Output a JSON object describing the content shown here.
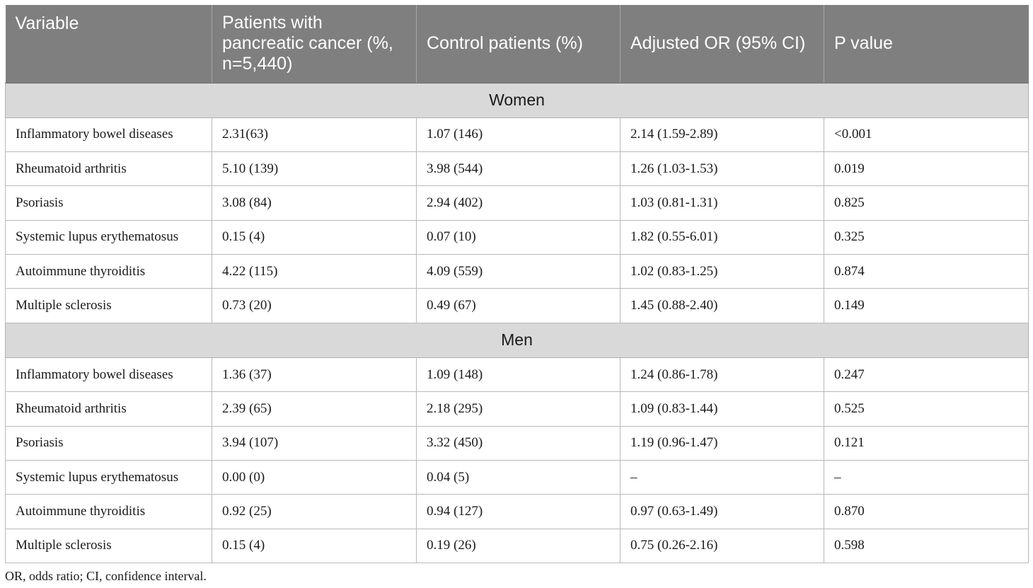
{
  "table": {
    "headers": [
      "Variable",
      "Patients with pancreatic cancer (%, n=5,440)",
      "Control patients (%)",
      "Adjusted OR (95% CI)",
      "P value"
    ],
    "sections": [
      {
        "title": "Women",
        "rows": [
          [
            "Inflammatory bowel diseases",
            "2.31(63)",
            "1.07 (146)",
            "2.14 (1.59-2.89)",
            "<0.001"
          ],
          [
            "Rheumatoid arthritis",
            "5.10 (139)",
            "3.98 (544)",
            "1.26 (1.03-1.53)",
            "0.019"
          ],
          [
            "Psoriasis",
            "3.08 (84)",
            "2.94 (402)",
            "1.03 (0.81-1.31)",
            "0.825"
          ],
          [
            "Systemic lupus erythematosus",
            "0.15 (4)",
            "0.07 (10)",
            "1.82 (0.55-6.01)",
            "0.325"
          ],
          [
            "Autoimmune thyroiditis",
            "4.22 (115)",
            "4.09 (559)",
            "1.02 (0.83-1.25)",
            "0.874"
          ],
          [
            "Multiple sclerosis",
            "0.73 (20)",
            "0.49 (67)",
            "1.45 (0.88-2.40)",
            "0.149"
          ]
        ]
      },
      {
        "title": "Men",
        "rows": [
          [
            "Inflammatory bowel diseases",
            "1.36 (37)",
            "1.09 (148)",
            "1.24 (0.86-1.78)",
            "0.247"
          ],
          [
            "Rheumatoid arthritis",
            "2.39 (65)",
            "2.18 (295)",
            "1.09 (0.83-1.44)",
            "0.525"
          ],
          [
            "Psoriasis",
            "3.94 (107)",
            "3.32 (450)",
            "1.19 (0.96-1.47)",
            "0.121"
          ],
          [
            "Systemic lupus erythematosus",
            "0.00 (0)",
            "0.04 (5)",
            "–",
            "–"
          ],
          [
            "Autoimmune thyroiditis",
            "0.92 (25)",
            "0.94 (127)",
            "0.97 (0.63-1.49)",
            "0.870"
          ],
          [
            "Multiple sclerosis",
            "0.15 (4)",
            "0.19 (26)",
            "0.75 (0.26-2.16)",
            "0.598"
          ]
        ]
      }
    ]
  },
  "footnote": "OR, odds ratio; CI, confidence interval.",
  "colors": {
    "header_bg": "#7f7f7f",
    "section_bg": "#d9d9d9"
  }
}
